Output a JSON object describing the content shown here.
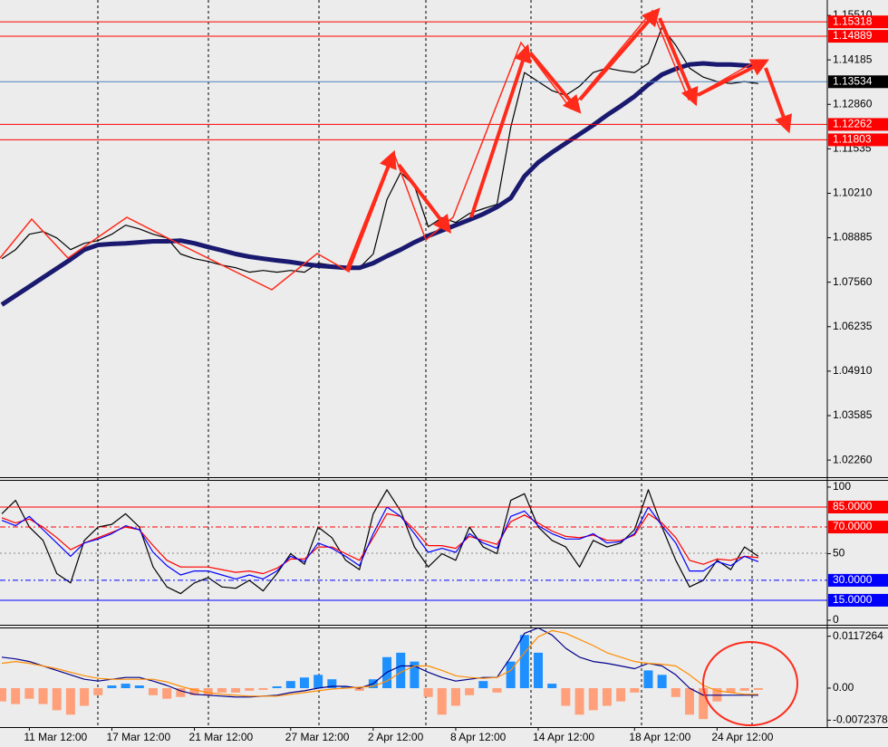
{
  "chart_data": [
    {
      "type": "line",
      "ylim": [
        1.0175,
        1.1597
      ],
      "yticks": [
        {
          "value": 1.1551,
          "label": "1.15510"
        },
        1.14185,
        {
          "value": 1.1286,
          "label": "1.12860"
        },
        1.11535,
        {
          "value": 1.1021,
          "label": "1.10210"
        },
        1.08885,
        {
          "value": 1.0756,
          "label": "1.07560"
        },
        1.06235,
        {
          "value": 1.0491,
          "label": "1.04910"
        },
        1.03585,
        {
          "value": 1.0226,
          "label": "1.02260"
        }
      ],
      "hlines": [
        {
          "value": 1.15318,
          "color": "#ff0000"
        },
        {
          "value": 1.14889,
          "color": "#ff0000"
        },
        {
          "value": 1.13534,
          "color": "#000000",
          "line_color": "#4f81bd"
        },
        {
          "value": 1.12262,
          "color": "#ff0000"
        },
        {
          "value": 1.11803,
          "color": "#ff0000"
        }
      ],
      "series": [
        {
          "color": "#000000",
          "values": [
            1.0826,
            1.0853,
            1.0899,
            1.0907,
            1.0888,
            1.0853,
            1.0872,
            1.088,
            1.0899,
            1.0926,
            1.0915,
            1.0899,
            1.0888,
            1.084,
            1.0826,
            1.0818,
            1.0807,
            1.0799,
            1.0786,
            1.0791,
            1.0786,
            1.0791,
            1.0786,
            1.0813,
            1.0807,
            1.0799,
            1.0799,
            1.084,
            1.1002,
            1.1083,
            1.1043,
            1.0921,
            1.0948,
            1.0934,
            1.0961,
            1.0975,
            1.0988,
            1.1218,
            1.1381,
            1.1354,
            1.1327,
            1.1313,
            1.134,
            1.1381,
            1.1394,
            1.1386,
            1.1381,
            1.1408,
            1.1516,
            1.1462,
            1.1394,
            1.1367,
            1.1354,
            1.1348,
            1.1354,
            1.1348
          ]
        },
        {
          "color": "#191970",
          "values": [
            1.0689,
            1.0716,
            1.0743,
            1.077,
            1.0797,
            1.0824,
            1.0853,
            1.0867,
            1.087,
            1.0872,
            1.0875,
            1.0878,
            1.0878,
            1.088,
            1.0872,
            1.0861,
            1.0851,
            1.084,
            1.0832,
            1.0826,
            1.0821,
            1.0816,
            1.081,
            1.0805,
            1.0802,
            1.0799,
            1.0799,
            1.0813,
            1.0834,
            1.0853,
            1.0875,
            1.0894,
            1.091,
            1.0926,
            1.0942,
            1.0959,
            1.098,
            1.1007,
            1.1072,
            1.1113,
            1.1143,
            1.117,
            1.1197,
            1.1224,
            1.1254,
            1.1281,
            1.131,
            1.1345,
            1.1375,
            1.1392,
            1.1405,
            1.1408,
            1.1405,
            1.1405,
            1.1402,
            1.14
          ]
        }
      ]
    },
    {
      "type": "line",
      "ylim": [
        -3.4,
        105.4
      ],
      "yticks": [
        100,
        50,
        0
      ],
      "hlines": [
        {
          "value": 85,
          "label": "85.0000",
          "color": "#ff0000"
        },
        {
          "value": 70,
          "label": "70.0000",
          "color": "#ff0000",
          "dash": true
        },
        {
          "value": 30,
          "label": "30.0000",
          "color": "#0000ff",
          "dash": true
        },
        {
          "value": 15,
          "label": "15.0000",
          "color": "#0000ff"
        }
      ],
      "series": [
        {
          "color": "#000000",
          "values": [
            80,
            90,
            70,
            60,
            35,
            28,
            60,
            70,
            72,
            80,
            70,
            40,
            25,
            20,
            28,
            32,
            25,
            24,
            30,
            22,
            35,
            50,
            42,
            70,
            62,
            45,
            38,
            80,
            98,
            82,
            55,
            40,
            50,
            45,
            70,
            55,
            50,
            90,
            95,
            70,
            60,
            55,
            40,
            60,
            55,
            58,
            68,
            98,
            70,
            45,
            25,
            30,
            45,
            38,
            55,
            48
          ]
        },
        {
          "color": "#ff0000",
          "values": [
            77,
            73,
            76,
            70,
            62,
            53,
            58,
            62,
            66,
            70,
            68,
            56,
            45,
            40,
            40,
            40,
            38,
            36,
            37,
            35,
            39,
            46,
            46,
            55,
            55,
            50,
            45,
            62,
            80,
            78,
            68,
            56,
            56,
            54,
            63,
            60,
            57,
            74,
            79,
            73,
            67,
            63,
            62,
            64,
            60,
            60,
            64,
            80,
            73,
            62,
            45,
            42,
            46,
            45,
            48,
            47
          ]
        },
        {
          "color": "#0000ff",
          "values": [
            75,
            71,
            78,
            68,
            58,
            48,
            58,
            61,
            65,
            71,
            68,
            51,
            41,
            34,
            37,
            37,
            34,
            31,
            34,
            31,
            37,
            48,
            44,
            58,
            54,
            48,
            41,
            65,
            85,
            78,
            65,
            51,
            54,
            51,
            65,
            58,
            54,
            78,
            82,
            71,
            65,
            61,
            61,
            65,
            58,
            59,
            65,
            85,
            71,
            58,
            37,
            37,
            44,
            41,
            48,
            44
          ]
        }
      ]
    },
    {
      "type": "bar",
      "ylim": [
        -0.0088,
        0.0137
      ],
      "yticks": [
        0.0117264,
        {
          "value": 0,
          "label": "0.00"
        },
        -0.0072378
      ],
      "color": "#1e90ff",
      "negative_color": "#ffa07a",
      "categories": [
        null,
        null,
        "11 Mar 12:00",
        null,
        null,
        null,
        null,
        null,
        "17 Mar 12:00",
        null,
        null,
        null,
        null,
        null,
        "21 Mar 12:00",
        null,
        null,
        null,
        null,
        null,
        null,
        "27 Mar 12:00",
        null,
        null,
        null,
        null,
        null,
        "2 Apr 12:00",
        null,
        null,
        null,
        null,
        null,
        "8 Apr 12:00",
        null,
        null,
        null,
        null,
        null,
        "14 Apr 12:00",
        null,
        null,
        null,
        null,
        null,
        null,
        "18 Apr 12:00",
        null,
        null,
        null,
        null,
        null,
        "24 Apr 12:00",
        null,
        null,
        null
      ],
      "values": [
        -0.003,
        -0.0036,
        -0.0024,
        -0.0036,
        -0.005,
        -0.006,
        -0.004,
        -0.0016,
        0.0006,
        0.001,
        0.0006,
        -0.0016,
        -0.0024,
        -0.002,
        -0.0016,
        -0.0016,
        -0.001,
        -0.001,
        -0.0006,
        -0.0004,
        0.0004,
        0.0016,
        0.0024,
        0.003,
        0.002,
        0.0004,
        -0.0006,
        0.002,
        0.007,
        0.008,
        0.006,
        -0.002,
        -0.006,
        -0.004,
        -0.0016,
        0.0016,
        -0.001,
        0.006,
        0.012,
        0.008,
        0.001,
        -0.004,
        -0.006,
        -0.005,
        -0.004,
        -0.003,
        -0.001,
        0.004,
        0.003,
        -0.002,
        -0.006,
        -0.007,
        -0.003,
        -0.001,
        -0.0006,
        -0.0004
      ],
      "series": [
        {
          "color": "#00008b",
          "values": [
            0.007,
            0.0066,
            0.006,
            0.005,
            0.004,
            0.003,
            0.002,
            0.0016,
            0.002,
            0.0024,
            0.0024,
            0.0016,
            0.0006,
            -0.0006,
            -0.0014,
            -0.0016,
            -0.0018,
            -0.002,
            -0.002,
            -0.0018,
            -0.0016,
            -0.001,
            -0.0006,
            0,
            0.0004,
            0.0004,
            0,
            0.001,
            0.0036,
            0.005,
            0.005,
            0.0036,
            0.0024,
            0.0016,
            0.002,
            0.0024,
            0.0024,
            0.007,
            0.0124,
            0.0136,
            0.012,
            0.009,
            0.007,
            0.006,
            0.0056,
            0.005,
            0.0044,
            0.0056,
            0.005,
            0.003,
            0,
            -0.0016,
            -0.0016,
            -0.0016,
            -0.0016,
            -0.0016
          ]
        },
        {
          "color": "#ff8c00",
          "values": [
            0.0056,
            0.006,
            0.0056,
            0.005,
            0.0044,
            0.0036,
            0.0028,
            0.0022,
            0.002,
            0.002,
            0.002,
            0.002,
            0.0014,
            0.0004,
            -0.0004,
            -0.001,
            -0.0014,
            -0.0016,
            -0.0018,
            -0.0018,
            -0.0018,
            -0.0014,
            -0.001,
            -0.0006,
            -0.0002,
            0,
            0.0002,
            0.0004,
            0.0016,
            0.0036,
            0.005,
            0.005,
            0.004,
            0.0028,
            0.0024,
            0.0022,
            0.0024,
            0.004,
            0.008,
            0.0116,
            0.013,
            0.0124,
            0.011,
            0.0096,
            0.008,
            0.007,
            0.006,
            0.0056,
            0.0054,
            0.005,
            0.003,
            0.0006,
            -0.0006,
            -0.001,
            -0.0014,
            -0.0014
          ]
        }
      ]
    }
  ]
}
